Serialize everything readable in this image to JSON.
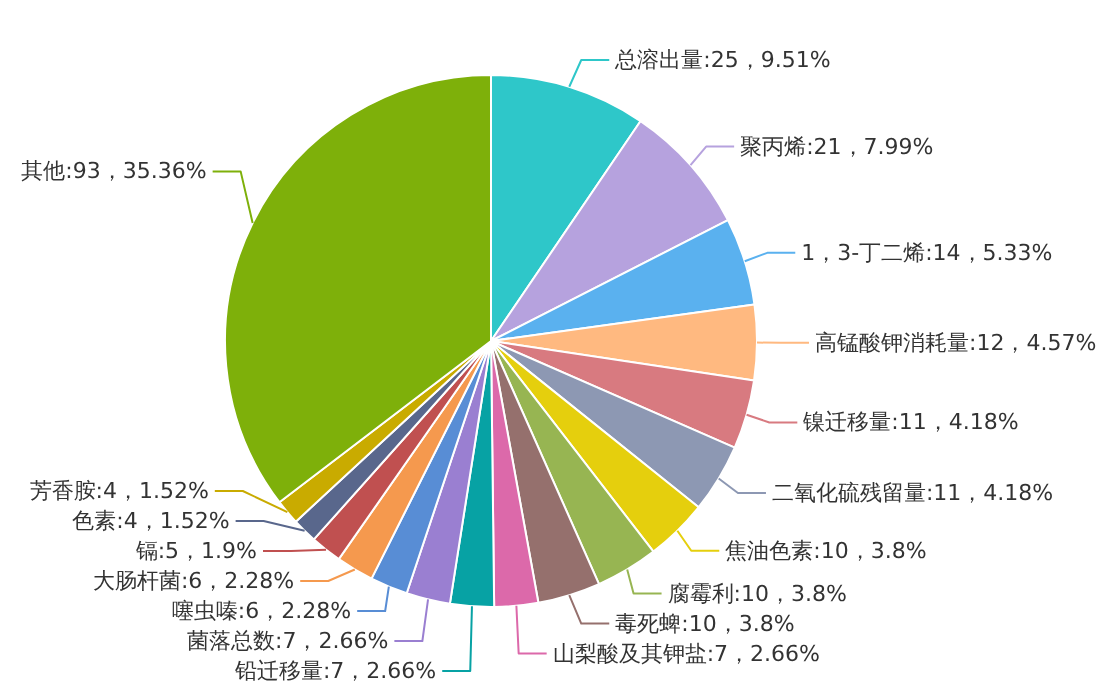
{
  "chart_data": {
    "type": "pie",
    "categories": [
      "总溶出量",
      "聚丙烯",
      "1，3-丁二烯",
      "高锰酸钾消耗量",
      "镍迁移量",
      "二氧化硫残留量",
      "焦油色素",
      "腐霉利",
      "毒死蜱",
      "山梨酸及其钾盐",
      "铅迁移量",
      "菌落总数",
      "噻虫嗪",
      "大肠杆菌",
      "镉",
      "色素",
      "芳香胺",
      "其他"
    ],
    "values": [
      25,
      21,
      14,
      12,
      11,
      11,
      10,
      10,
      10,
      7,
      7,
      7,
      6,
      6,
      5,
      4,
      4,
      93
    ],
    "value_labels": [
      "25，9.51%",
      "21，7.99%",
      "14，5.33%",
      "12，4.57%",
      "11，4.18%",
      "11，4.18%",
      "10，3.8%",
      "10，3.8%",
      "10，3.8%",
      "7，2.66%",
      "7，2.66%",
      "7，2.66%",
      "6，2.28%",
      "6，2.28%",
      "5，1.9%",
      "4，1.52%",
      "4，1.52%",
      "93，35.36%"
    ],
    "colors": [
      "#2ec7c9",
      "#b6a2de",
      "#5ab1ef",
      "#ffb980",
      "#d87a80",
      "#8d98b3",
      "#e5cf0d",
      "#97b552",
      "#95706d",
      "#dc69aa",
      "#07a2a4",
      "#9a7fd1",
      "#588dd5",
      "#f5994e",
      "#c05050",
      "#59678c",
      "#c9ab00",
      "#7eb00a"
    ]
  }
}
